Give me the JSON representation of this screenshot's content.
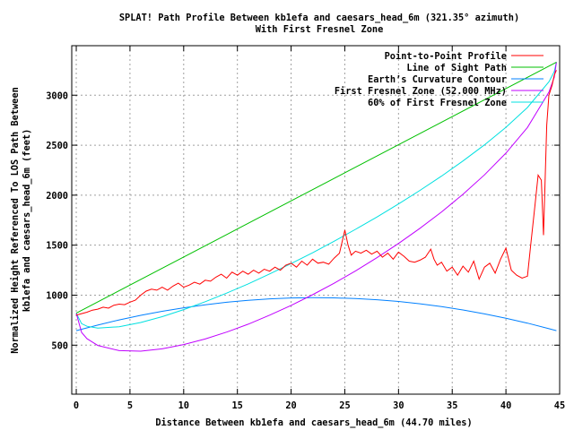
{
  "chart_data": {
    "type": "line",
    "title": [
      "SPLAT! Path Profile Between kb1efa and caesars_head_6m (321.35° azimuth)",
      "With First Fresnel Zone"
    ],
    "xlabel": "Distance Between kb1efa and caesars_head_6m (44.70 miles)",
    "ylabel": [
      "Normalized Height Referenced To LOS Path Between",
      "kb1efa and caesars_head_6m (feet)"
    ],
    "xlim": [
      -0.42,
      45
    ],
    "ylim": [
      10,
      3495
    ],
    "xticks": [
      0,
      5,
      10,
      15,
      20,
      25,
      30,
      35,
      40,
      45
    ],
    "yticks": [
      500,
      1000,
      1500,
      2000,
      2500,
      3000
    ],
    "grid": true,
    "legend_position": "top-right",
    "series": [
      {
        "name": "Point-to-Point Profile",
        "color": "#ff0000",
        "points": [
          [
            0,
            800
          ],
          [
            0.5,
            815
          ],
          [
            1,
            830
          ],
          [
            1.5,
            850
          ],
          [
            2,
            860
          ],
          [
            2.5,
            880
          ],
          [
            3,
            870
          ],
          [
            3.5,
            900
          ],
          [
            4,
            910
          ],
          [
            4.5,
            905
          ],
          [
            5,
            930
          ],
          [
            5.5,
            950
          ],
          [
            6,
            1000
          ],
          [
            6.5,
            1040
          ],
          [
            7,
            1060
          ],
          [
            7.5,
            1050
          ],
          [
            8,
            1080
          ],
          [
            8.5,
            1050
          ],
          [
            9,
            1090
          ],
          [
            9.5,
            1120
          ],
          [
            10,
            1080
          ],
          [
            10.5,
            1100
          ],
          [
            11,
            1130
          ],
          [
            11.5,
            1110
          ],
          [
            12,
            1150
          ],
          [
            12.5,
            1140
          ],
          [
            13,
            1180
          ],
          [
            13.5,
            1210
          ],
          [
            14,
            1170
          ],
          [
            14.5,
            1230
          ],
          [
            15,
            1200
          ],
          [
            15.5,
            1240
          ],
          [
            16,
            1210
          ],
          [
            16.5,
            1250
          ],
          [
            17,
            1220
          ],
          [
            17.5,
            1260
          ],
          [
            18,
            1240
          ],
          [
            18.5,
            1280
          ],
          [
            19,
            1250
          ],
          [
            19.5,
            1300
          ],
          [
            20,
            1320
          ],
          [
            20.5,
            1280
          ],
          [
            21,
            1340
          ],
          [
            21.5,
            1300
          ],
          [
            22,
            1360
          ],
          [
            22.5,
            1320
          ],
          [
            23,
            1330
          ],
          [
            23.5,
            1310
          ],
          [
            24,
            1370
          ],
          [
            24.5,
            1420
          ],
          [
            25,
            1650
          ],
          [
            25.3,
            1500
          ],
          [
            25.6,
            1400
          ],
          [
            26,
            1440
          ],
          [
            26.5,
            1420
          ],
          [
            27,
            1450
          ],
          [
            27.5,
            1410
          ],
          [
            28,
            1440
          ],
          [
            28.5,
            1380
          ],
          [
            29,
            1420
          ],
          [
            29.5,
            1360
          ],
          [
            30,
            1430
          ],
          [
            30.5,
            1390
          ],
          [
            31,
            1340
          ],
          [
            31.5,
            1330
          ],
          [
            32,
            1350
          ],
          [
            32.5,
            1380
          ],
          [
            33,
            1460
          ],
          [
            33.3,
            1360
          ],
          [
            33.6,
            1300
          ],
          [
            34,
            1330
          ],
          [
            34.5,
            1240
          ],
          [
            35,
            1280
          ],
          [
            35.5,
            1200
          ],
          [
            36,
            1290
          ],
          [
            36.5,
            1230
          ],
          [
            37,
            1340
          ],
          [
            37.5,
            1160
          ],
          [
            38,
            1280
          ],
          [
            38.5,
            1320
          ],
          [
            39,
            1220
          ],
          [
            39.5,
            1360
          ],
          [
            40,
            1470
          ],
          [
            40.5,
            1250
          ],
          [
            41,
            1200
          ],
          [
            41.5,
            1170
          ],
          [
            42,
            1190
          ],
          [
            42.3,
            1500
          ],
          [
            42.7,
            1900
          ],
          [
            43,
            2200
          ],
          [
            43.3,
            2150
          ],
          [
            43.5,
            1600
          ],
          [
            43.8,
            2700
          ],
          [
            44,
            3000
          ],
          [
            44.3,
            3100
          ],
          [
            44.5,
            3200
          ],
          [
            44.7,
            3250
          ]
        ]
      },
      {
        "name": "Line of Sight Path",
        "color": "#00c000",
        "points": [
          [
            0,
            820
          ],
          [
            44.7,
            3330
          ]
        ]
      },
      {
        "name": "Earth’s Curvature Contour",
        "color": "#0080ff",
        "points": [
          [
            0,
            645
          ],
          [
            2,
            701
          ],
          [
            4,
            753
          ],
          [
            6,
            798
          ],
          [
            8,
            839
          ],
          [
            10,
            874
          ],
          [
            12,
            904
          ],
          [
            14,
            929
          ],
          [
            16,
            949
          ],
          [
            18,
            963
          ],
          [
            20,
            972
          ],
          [
            22,
            975
          ],
          [
            24,
            973
          ],
          [
            26,
            966
          ],
          [
            28,
            954
          ],
          [
            30,
            937
          ],
          [
            32,
            914
          ],
          [
            34,
            885
          ],
          [
            36,
            852
          ],
          [
            38,
            813
          ],
          [
            40,
            769
          ],
          [
            42,
            720
          ],
          [
            44,
            665
          ],
          [
            44.7,
            645
          ]
        ]
      },
      {
        "name": "First Fresnel Zone (52.000 MHz)",
        "color": "#c000ff",
        "points": [
          [
            0,
            820
          ],
          [
            0.5,
            627
          ],
          [
            1,
            565
          ],
          [
            2,
            497
          ],
          [
            4,
            445
          ],
          [
            6,
            440
          ],
          [
            8,
            463
          ],
          [
            10,
            506
          ],
          [
            12,
            562
          ],
          [
            14,
            631
          ],
          [
            16,
            710
          ],
          [
            18,
            800
          ],
          [
            20,
            898
          ],
          [
            22,
            1004
          ],
          [
            24,
            1119
          ],
          [
            26,
            1243
          ],
          [
            28,
            1375
          ],
          [
            30,
            1517
          ],
          [
            32,
            1669
          ],
          [
            34,
            1832
          ],
          [
            36,
            2009
          ],
          [
            38,
            2203
          ],
          [
            40,
            2421
          ],
          [
            42,
            2677
          ],
          [
            44,
            3030
          ],
          [
            44.5,
            3179
          ],
          [
            44.7,
            3330
          ]
        ]
      },
      {
        "name": "60% of First Fresnel Zone",
        "color": "#00e0e0",
        "points": [
          [
            0,
            820
          ],
          [
            0.5,
            715
          ],
          [
            1,
            689
          ],
          [
            2,
            671
          ],
          [
            4,
            685
          ],
          [
            6,
            727
          ],
          [
            8,
            785
          ],
          [
            10,
            856
          ],
          [
            12,
            935
          ],
          [
            14,
            1021
          ],
          [
            16,
            1113
          ],
          [
            18,
            1212
          ],
          [
            20,
            1316
          ],
          [
            22,
            1424
          ],
          [
            24,
            1539
          ],
          [
            26,
            1658
          ],
          [
            28,
            1782
          ],
          [
            30,
            1912
          ],
          [
            32,
            2048
          ],
          [
            34,
            2191
          ],
          [
            36,
            2342
          ],
          [
            38,
            2503
          ],
          [
            40,
            2679
          ],
          [
            42,
            2877
          ],
          [
            44,
            3134
          ],
          [
            44.5,
            3235
          ],
          [
            44.7,
            3330
          ]
        ]
      }
    ]
  }
}
